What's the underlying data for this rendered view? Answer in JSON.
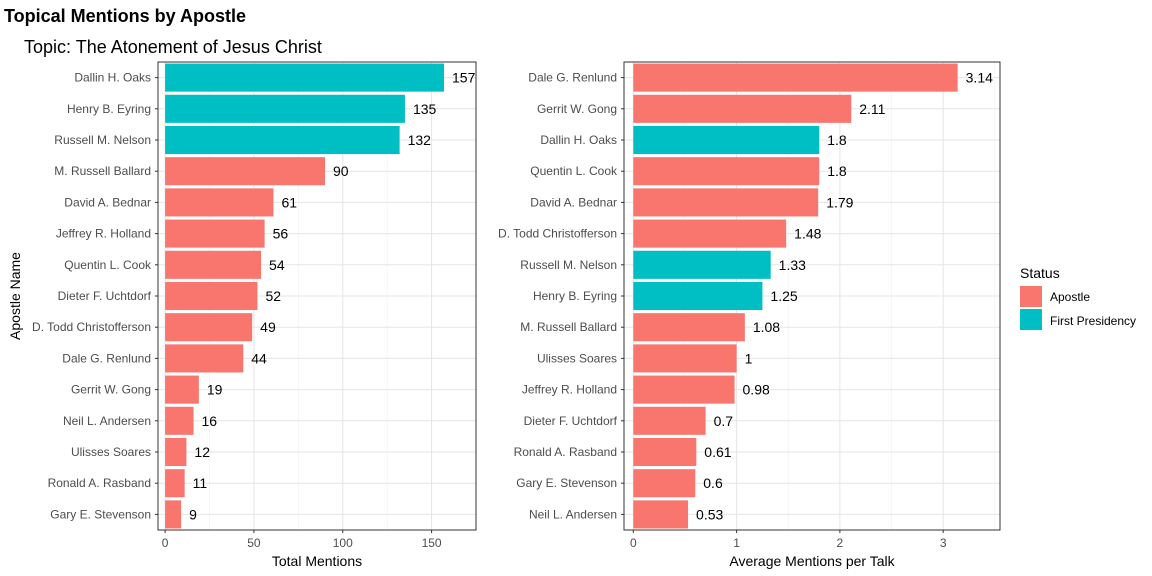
{
  "title": "Topical Mentions by Apostle",
  "subtitle": "Topic: The Atonement of Jesus Christ",
  "colors": {
    "Apostle": "#F8766D",
    "First Presidency": "#00BFC4"
  },
  "legend": {
    "title": "Status",
    "items": [
      "Apostle",
      "First Presidency"
    ]
  },
  "chart_data": [
    {
      "type": "bar",
      "orientation": "horizontal",
      "xlabel": "Total Mentions",
      "ylabel": "Apostle Name",
      "xlim": [
        -4,
        175
      ],
      "xticks": [
        0,
        50,
        100,
        150
      ],
      "grid": true,
      "categories": [
        "Dallin H. Oaks",
        "Henry B. Eyring",
        "Russell M. Nelson",
        "M. Russell Ballard",
        "David A. Bednar",
        "Jeffrey R. Holland",
        "Quentin L. Cook",
        "Dieter F. Uchtdorf",
        "D. Todd Christofferson",
        "Dale G. Renlund",
        "Gerrit W. Gong",
        "Neil L. Andersen",
        "Ulisses Soares",
        "Ronald A. Rasband",
        "Gary E. Stevenson"
      ],
      "values": [
        157,
        135,
        132,
        90,
        61,
        56,
        54,
        52,
        49,
        44,
        19,
        16,
        12,
        11,
        9
      ],
      "labels": [
        "157",
        "135",
        "132",
        "90",
        "61",
        "56",
        "54",
        "52",
        "49",
        "44",
        "19",
        "16",
        "12",
        "11",
        "9"
      ],
      "status": [
        "First Presidency",
        "First Presidency",
        "First Presidency",
        "Apostle",
        "Apostle",
        "Apostle",
        "Apostle",
        "Apostle",
        "Apostle",
        "Apostle",
        "Apostle",
        "Apostle",
        "Apostle",
        "Apostle",
        "Apostle"
      ]
    },
    {
      "type": "bar",
      "orientation": "horizontal",
      "xlabel": "Average Mentions per Talk",
      "ylabel": "",
      "xlim": [
        -0.09,
        3.55
      ],
      "xticks": [
        0,
        1,
        2,
        3
      ],
      "grid": true,
      "categories": [
        "Dale G. Renlund",
        "Gerrit W. Gong",
        "Dallin H. Oaks",
        "Quentin L. Cook",
        "David A. Bednar",
        "D. Todd Christofferson",
        "Russell M. Nelson",
        "Henry B. Eyring",
        "M. Russell Ballard",
        "Ulisses Soares",
        "Jeffrey R. Holland",
        "Dieter F. Uchtdorf",
        "Ronald A. Rasband",
        "Gary E. Stevenson",
        "Neil L. Andersen"
      ],
      "values": [
        3.14,
        2.11,
        1.8,
        1.8,
        1.79,
        1.48,
        1.33,
        1.25,
        1.08,
        1,
        0.98,
        0.7,
        0.61,
        0.6,
        0.53
      ],
      "labels": [
        "3.14",
        "2.11",
        "1.8",
        "1.8",
        "1.79",
        "1.48",
        "1.33",
        "1.25",
        "1.08",
        "1",
        "0.98",
        "0.7",
        "0.61",
        "0.6",
        "0.53"
      ],
      "status": [
        "Apostle",
        "Apostle",
        "First Presidency",
        "Apostle",
        "Apostle",
        "Apostle",
        "First Presidency",
        "First Presidency",
        "Apostle",
        "Apostle",
        "Apostle",
        "Apostle",
        "Apostle",
        "Apostle",
        "Apostle"
      ]
    }
  ]
}
